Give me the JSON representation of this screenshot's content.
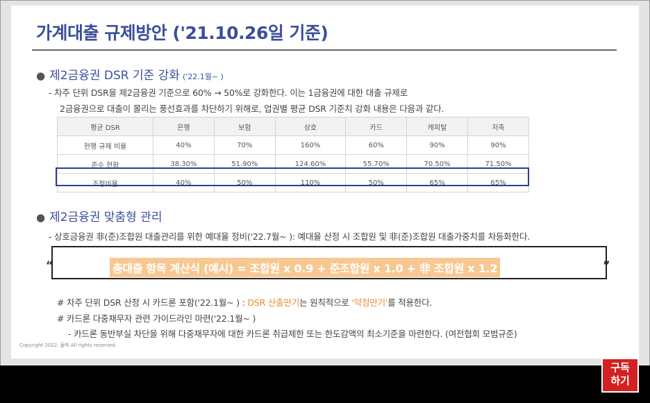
{
  "title": "가계대출 규제방안 ('21.10.26일 기준)",
  "section1": {
    "bullet": "●",
    "heading": "제2금융권 DSR 기준 강화",
    "note": "('22.1월~ )",
    "line1": "- 차주 단위 DSR을 제2금융권 기준으로 60% → 50%로 강화한다. 이는 1금융권에 대한 대출 규제로",
    "line2": "2금융권으로 대출이 몰리는 풍선효과를 차단하기 위해로, 업권별 평균 DSR 기준치 강화 내용은 다음과 같다."
  },
  "table": {
    "headers": [
      "평균 DSR",
      "은행",
      "보험",
      "상호",
      "카드",
      "캐피탈",
      "저축"
    ],
    "rows": [
      [
        "현행 규제 비율",
        "40%",
        "70%",
        "160%",
        "60%",
        "90%",
        "90%"
      ],
      [
        "준수 현황",
        "38.30%",
        "51.90%",
        "124.60%",
        "55.70%",
        "70.50%",
        "71.50%"
      ],
      [
        "조정비율",
        "40%",
        "50%",
        "110%",
        "50%",
        "65%",
        "65%"
      ]
    ]
  },
  "section2": {
    "bullet": "●",
    "heading": "제2금융권 맞춤형 관리",
    "line1": "- 상호금융권 非(준)조합원 대출관리를 위한 예대율 정비('22.7월~ ): 예대율 산정 시 조합원 및 非(준)조합원 대출가중치를 차등화한다.",
    "formula": "총대출 항목 계산식 (예시) = 조합원 x 0.9 + 준조합원 x 1.0 + 非 조합원 x 1.2",
    "quote_open": "“",
    "quote_close": "”"
  },
  "notes": {
    "n1_pre": "# 차주 단위 DSR 산정 시 카드론 포함('22.1월~ ) : ",
    "n1_hl1": "DSR 산출만기",
    "n1_mid": "는 원칙적으로 ",
    "n1_hl2": "'약정만기'",
    "n1_post": "를 적용한다.",
    "n2": "# 카드론 다중채무자 관련 가이드라인 마련('22.1월~ )",
    "n3": "- 카드론 동반부실 차단을 위해 다중채무자에 대한 카드론 취급제한 또는 한도감액의 최소기준을 마련한다. (여전협회 모범규준)"
  },
  "copyright": "Copyright 2022. 돌박 All rights reserved.",
  "subscribe": {
    "line1": "구독",
    "line2": "하기"
  },
  "colors": {
    "title": "#3b4f9a",
    "accent": "#e88a2e",
    "box_border": "#2c3e8c",
    "subscribe_bg": "#d42020"
  }
}
